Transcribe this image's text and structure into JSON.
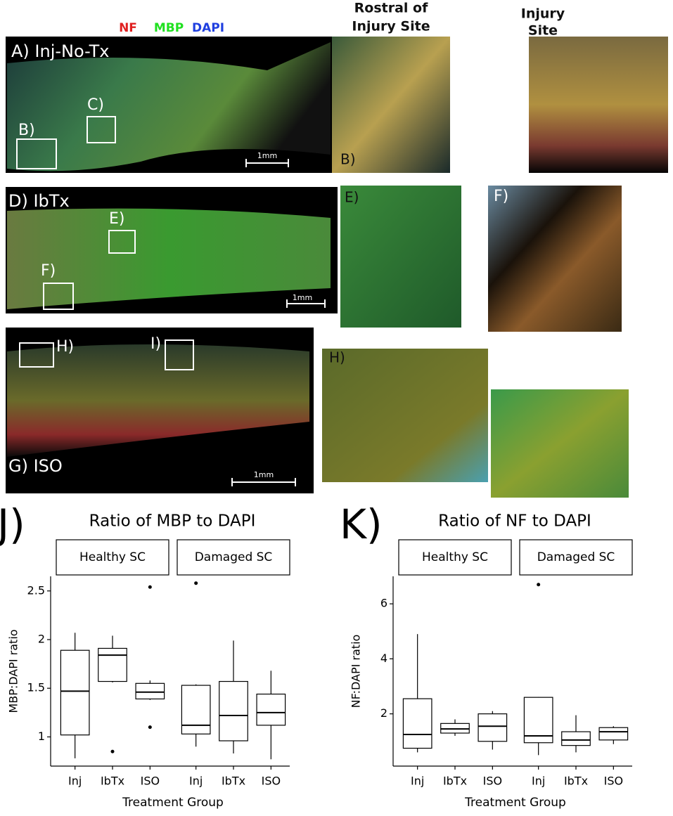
{
  "stain_legend": [
    "NF",
    "MBP",
    "DAPI"
  ],
  "panels": {
    "a_title": "A) Inj-No-Tx",
    "a_box_c": "C)",
    "a_box_b": "B)",
    "a_scale": "1mm",
    "b_header": [
      "Rostral of",
      "Injury Site"
    ],
    "b_label": "B)",
    "c_header": [
      "Injury",
      "Site"
    ],
    "d_title": "D) IbTx",
    "d_box_e": "E)",
    "d_box_f": "F)",
    "d_scale": "1mm",
    "e_label": "E)",
    "f_label": "F)",
    "g_title": "G) ISO",
    "g_box_h": "H)",
    "g_box_i": "I)",
    "g_scale": "1mm",
    "h_label": "H)"
  },
  "chart_data": [
    {
      "type": "box",
      "panel_label": "J)",
      "title": "Ratio of MBP to DAPI",
      "xlabel": "Treatment Group",
      "ylabel": "MBP:DAPI ratio",
      "ylim": [
        0.7,
        2.65
      ],
      "yticks": [
        1.0,
        1.5,
        2.0,
        2.5
      ],
      "facets": [
        {
          "name": "Healthy SC",
          "categories": [
            "Inj",
            "IbTx",
            "ISO"
          ],
          "boxes": [
            {
              "min": 0.78,
              "q1": 1.02,
              "median": 1.47,
              "q3": 1.89,
              "max": 2.07,
              "outliers": []
            },
            {
              "min": 1.56,
              "q1": 1.57,
              "median": 1.84,
              "q3": 1.91,
              "max": 2.04,
              "outliers": [
                0.85
              ]
            },
            {
              "min": 1.38,
              "q1": 1.39,
              "median": 1.46,
              "q3": 1.55,
              "max": 1.58,
              "outliers": [
                2.54,
                1.1
              ]
            }
          ]
        },
        {
          "name": "Damaged SC",
          "categories": [
            "Inj",
            "IbTx",
            "ISO"
          ],
          "boxes": [
            {
              "min": 0.9,
              "q1": 1.03,
              "median": 1.12,
              "q3": 1.53,
              "max": 1.54,
              "outliers": [
                2.58
              ]
            },
            {
              "min": 0.83,
              "q1": 0.96,
              "median": 1.22,
              "q3": 1.57,
              "max": 1.99,
              "outliers": []
            },
            {
              "min": 0.77,
              "q1": 1.12,
              "median": 1.25,
              "q3": 1.44,
              "max": 1.68,
              "outliers": []
            }
          ]
        }
      ]
    },
    {
      "type": "box",
      "panel_label": "K)",
      "title": "Ratio of NF to DAPI",
      "xlabel": "Treatment Group",
      "ylabel": "NF:DAPI ratio",
      "ylim": [
        0.1,
        7.0
      ],
      "yticks": [
        2,
        4,
        6
      ],
      "facets": [
        {
          "name": "Healthy SC",
          "categories": [
            "Inj",
            "IbTx",
            "ISO"
          ],
          "boxes": [
            {
              "min": 0.6,
              "q1": 0.75,
              "median": 1.25,
              "q3": 2.55,
              "max": 4.9,
              "outliers": []
            },
            {
              "min": 1.2,
              "q1": 1.3,
              "median": 1.45,
              "q3": 1.65,
              "max": 1.8,
              "outliers": []
            },
            {
              "min": 0.7,
              "q1": 1.0,
              "median": 1.55,
              "q3": 2.0,
              "max": 2.1,
              "outliers": []
            }
          ]
        },
        {
          "name": "Damaged SC",
          "categories": [
            "Inj",
            "IbTx",
            "ISO"
          ],
          "boxes": [
            {
              "min": 0.5,
              "q1": 0.95,
              "median": 1.2,
              "q3": 2.6,
              "max": 2.61,
              "outliers": [
                6.7
              ]
            },
            {
              "min": 0.6,
              "q1": 0.85,
              "median": 1.05,
              "q3": 1.35,
              "max": 1.95,
              "outliers": []
            },
            {
              "min": 0.9,
              "q1": 1.05,
              "median": 1.35,
              "q3": 1.5,
              "max": 1.55,
              "outliers": []
            }
          ]
        }
      ]
    }
  ]
}
